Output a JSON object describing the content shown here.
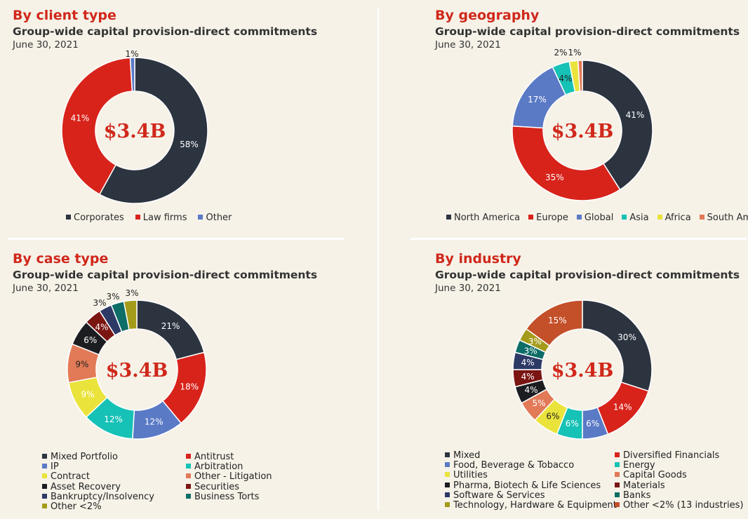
{
  "colors": {
    "dark": "#2c3440",
    "red": "#d8231b",
    "blue": "#5a7ac6",
    "teal": "#16c1b6",
    "yellow": "#eae33c",
    "salmon": "#e27a57",
    "black": "#1c1d21",
    "maroon": "#7a1512",
    "navy": "#2e3a66",
    "darkteal": "#0e6d67",
    "olive": "#a49b1b",
    "orange": "#c4502a",
    "title_red": "#d0281b",
    "background": "#f6f2e8"
  },
  "chart_data": [
    {
      "type": "pie",
      "title": "By client type",
      "subtitle": "Group-wide capital provision-direct commitments",
      "date": "June 30, 2021",
      "center_label": "$3.4B",
      "legend_placement": "bottom",
      "slices": [
        {
          "name": "Corporates",
          "value": 58,
          "label": "58%",
          "color": "#2c3440"
        },
        {
          "name": "Law firms",
          "value": 41,
          "label": "41%",
          "color": "#d8231b"
        },
        {
          "name": "Other",
          "value": 1,
          "label": "1%",
          "color": "#5a7ac6"
        }
      ]
    },
    {
      "type": "pie",
      "title": "By geography",
      "subtitle": "Group-wide capital provision-direct commitments",
      "date": "June 30, 2021",
      "center_label": "$3.4B",
      "legend_placement": "bottom",
      "slices": [
        {
          "name": "North America",
          "value": 41,
          "label": "41%",
          "color": "#2c3440"
        },
        {
          "name": "Europe",
          "value": 35,
          "label": "35%",
          "color": "#d8231b"
        },
        {
          "name": "Global",
          "value": 17,
          "label": "17%",
          "color": "#5a7ac6"
        },
        {
          "name": "Asia",
          "value": 4,
          "label": "4%",
          "color": "#16c1b6"
        },
        {
          "name": "Africa",
          "value": 2,
          "label": "2%",
          "color": "#eae33c"
        },
        {
          "name": "South America",
          "value": 1,
          "label": "1%",
          "color": "#e27a57"
        }
      ]
    },
    {
      "type": "pie",
      "title": "By case type",
      "subtitle": "Group-wide capital provision-direct commitments",
      "date": "June 30, 2021",
      "center_label": "$3.4B",
      "legend_placement": "bottom",
      "slices": [
        {
          "name": "Mixed Portfolio",
          "value": 21,
          "label": "21%",
          "color": "#2c3440"
        },
        {
          "name": "Antitrust",
          "value": 18,
          "label": "18%",
          "color": "#d8231b"
        },
        {
          "name": "IP",
          "value": 12,
          "label": "12%",
          "color": "#5a7ac6"
        },
        {
          "name": "Arbitration",
          "value": 12,
          "label": "12%",
          "color": "#16c1b6"
        },
        {
          "name": "Contract",
          "value": 9,
          "label": "9%",
          "color": "#eae33c"
        },
        {
          "name": "Other - Litigation",
          "value": 9,
          "label": "9%",
          "color": "#e27a57"
        },
        {
          "name": "Asset Recovery",
          "value": 6,
          "label": "6%",
          "color": "#1c1d21"
        },
        {
          "name": "Securities",
          "value": 4,
          "label": "4%",
          "color": "#7a1512"
        },
        {
          "name": "Bankruptcy/Insolvency",
          "value": 3,
          "label": "3%",
          "color": "#2e3a66"
        },
        {
          "name": "Business Torts",
          "value": 3,
          "label": "3%",
          "color": "#0e6d67"
        },
        {
          "name": "Other <2%",
          "value": 3,
          "label": "3%",
          "color": "#a49b1b"
        }
      ]
    },
    {
      "type": "pie",
      "title": "By industry",
      "subtitle": "Group-wide capital provision-direct commitments",
      "date": "June 30, 2021",
      "center_label": "$3.4B",
      "legend_placement": "bottom",
      "slices": [
        {
          "name": "Mixed",
          "value": 30,
          "label": "30%",
          "color": "#2c3440"
        },
        {
          "name": "Diversified Financials",
          "value": 14,
          "label": "14%",
          "color": "#d8231b"
        },
        {
          "name": "Food, Beverage & Tobacco",
          "value": 6,
          "label": "6%",
          "color": "#5a7ac6"
        },
        {
          "name": "Energy",
          "value": 6,
          "label": "6%",
          "color": "#16c1b6"
        },
        {
          "name": "Utilities",
          "value": 6,
          "label": "6%",
          "color": "#eae33c"
        },
        {
          "name": "Capital Goods",
          "value": 5,
          "label": "5%",
          "color": "#e27a57"
        },
        {
          "name": "Pharma, Biotech & Life Sciences",
          "value": 4,
          "label": "4%",
          "color": "#1c1d21"
        },
        {
          "name": "Materials",
          "value": 4,
          "label": "4%",
          "color": "#7a1512"
        },
        {
          "name": "Software & Services",
          "value": 4,
          "label": "4%",
          "color": "#2e3a66"
        },
        {
          "name": "Banks",
          "value": 3,
          "label": "3%",
          "color": "#0e6d67"
        },
        {
          "name": "Technology, Hardware & Equipment",
          "value": 3,
          "label": "3%",
          "color": "#a49b1b"
        },
        {
          "name": "Other <2% (13 industries)",
          "value": 15,
          "label": "15%",
          "color": "#c4502a"
        }
      ]
    }
  ]
}
